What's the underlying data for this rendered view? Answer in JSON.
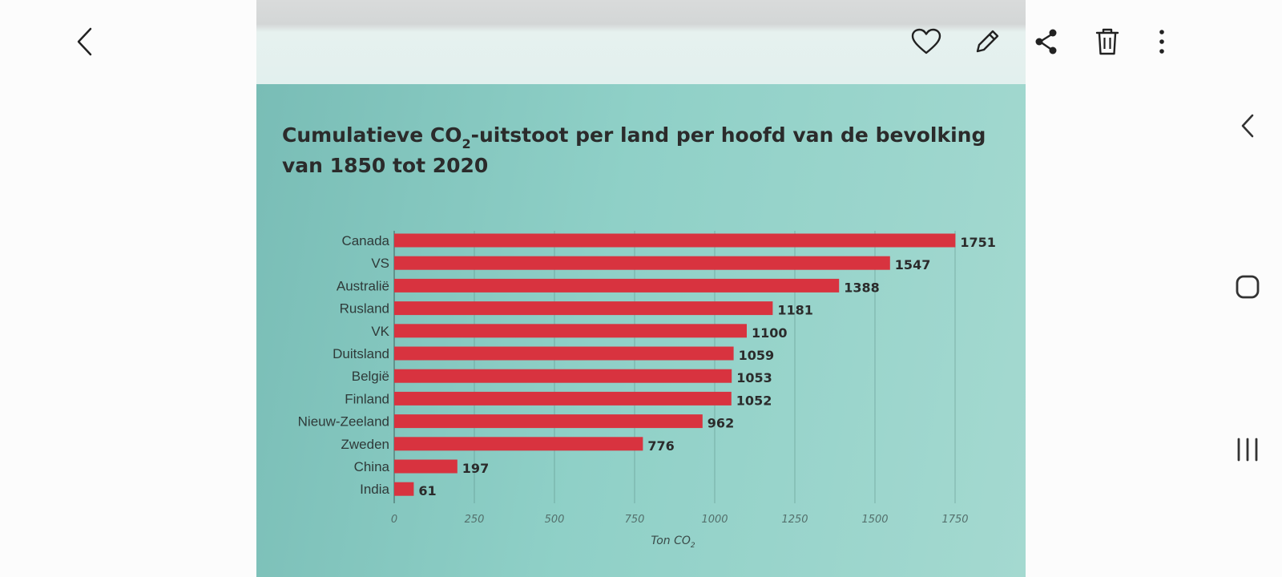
{
  "viewer": {
    "back_icon": "chevron-left-icon",
    "actions": [
      {
        "name": "favorite",
        "icon": "heart-icon"
      },
      {
        "name": "edit",
        "icon": "pencil-icon"
      },
      {
        "name": "share",
        "icon": "share-icon"
      },
      {
        "name": "delete",
        "icon": "trash-icon"
      },
      {
        "name": "more",
        "icon": "more-vertical-icon"
      }
    ]
  },
  "nav_bar": {
    "buttons": [
      {
        "name": "back",
        "icon": "chevron-left-icon"
      },
      {
        "name": "home",
        "icon": "home-square-icon"
      },
      {
        "name": "recents",
        "icon": "recents-icon"
      }
    ]
  },
  "colors": {
    "bar": "#d8333f",
    "text": "#2b2b2b",
    "page": "#8fcfc6"
  },
  "chart_data": {
    "type": "bar",
    "orientation": "horizontal",
    "title_part1": "Cumulatieve CO",
    "title_sub": "2",
    "title_part2": "-uitstoot per land per hoofd van de bevolking",
    "title_line2": "van 1850 tot 2020",
    "categories": [
      "Canada",
      "VS",
      "Australië",
      "Rusland",
      "VK",
      "Duitsland",
      "België",
      "Finland",
      "Nieuw-Zeeland",
      "Zweden",
      "China",
      "India"
    ],
    "values": [
      1751,
      1547,
      1388,
      1181,
      1100,
      1059,
      1053,
      1052,
      962,
      776,
      197,
      61
    ],
    "xticks": [
      0,
      250,
      500,
      750,
      1000,
      1250,
      1500,
      1750
    ],
    "xlim": [
      0,
      1750
    ],
    "xlabel_main": "Ton CO",
    "xlabel_sub": "2",
    "grid": true
  }
}
